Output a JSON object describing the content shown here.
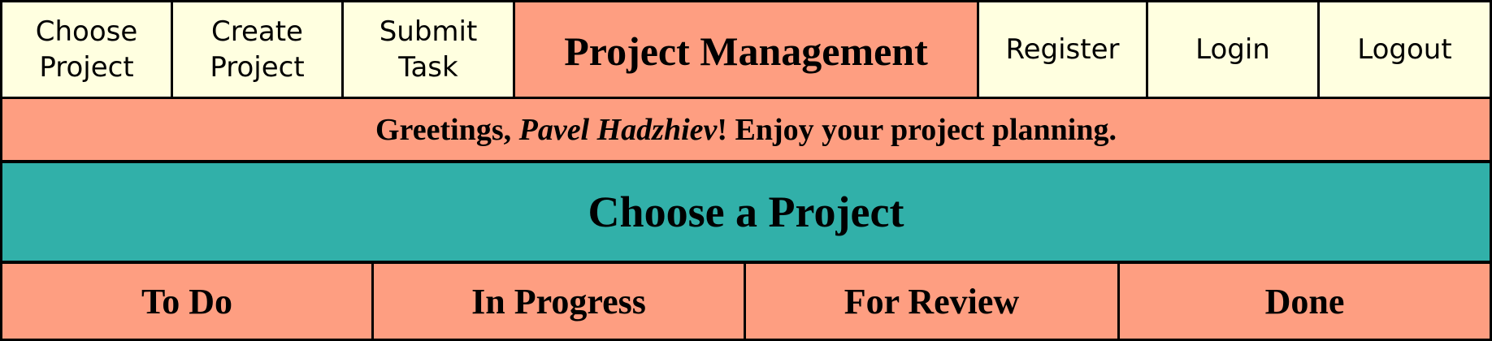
{
  "nav": {
    "choose_project": "Choose\nProject",
    "create_project": "Create\nProject",
    "submit_task": "Submit\nTask",
    "brand": "Project Management",
    "register": "Register",
    "login": "Login",
    "logout": "Logout"
  },
  "greeting": {
    "prefix": "Greetings, ",
    "user": "Pavel Hadzhiev",
    "suffix": "! Enjoy your project planning."
  },
  "main": {
    "heading": "Choose a Project"
  },
  "columns": [
    "To Do",
    "In Progress",
    "For Review",
    "Done"
  ],
  "colors": {
    "nav_button_bg": "#ffffe0",
    "salmon": "#fe9e81",
    "teal": "#31b0a9"
  }
}
